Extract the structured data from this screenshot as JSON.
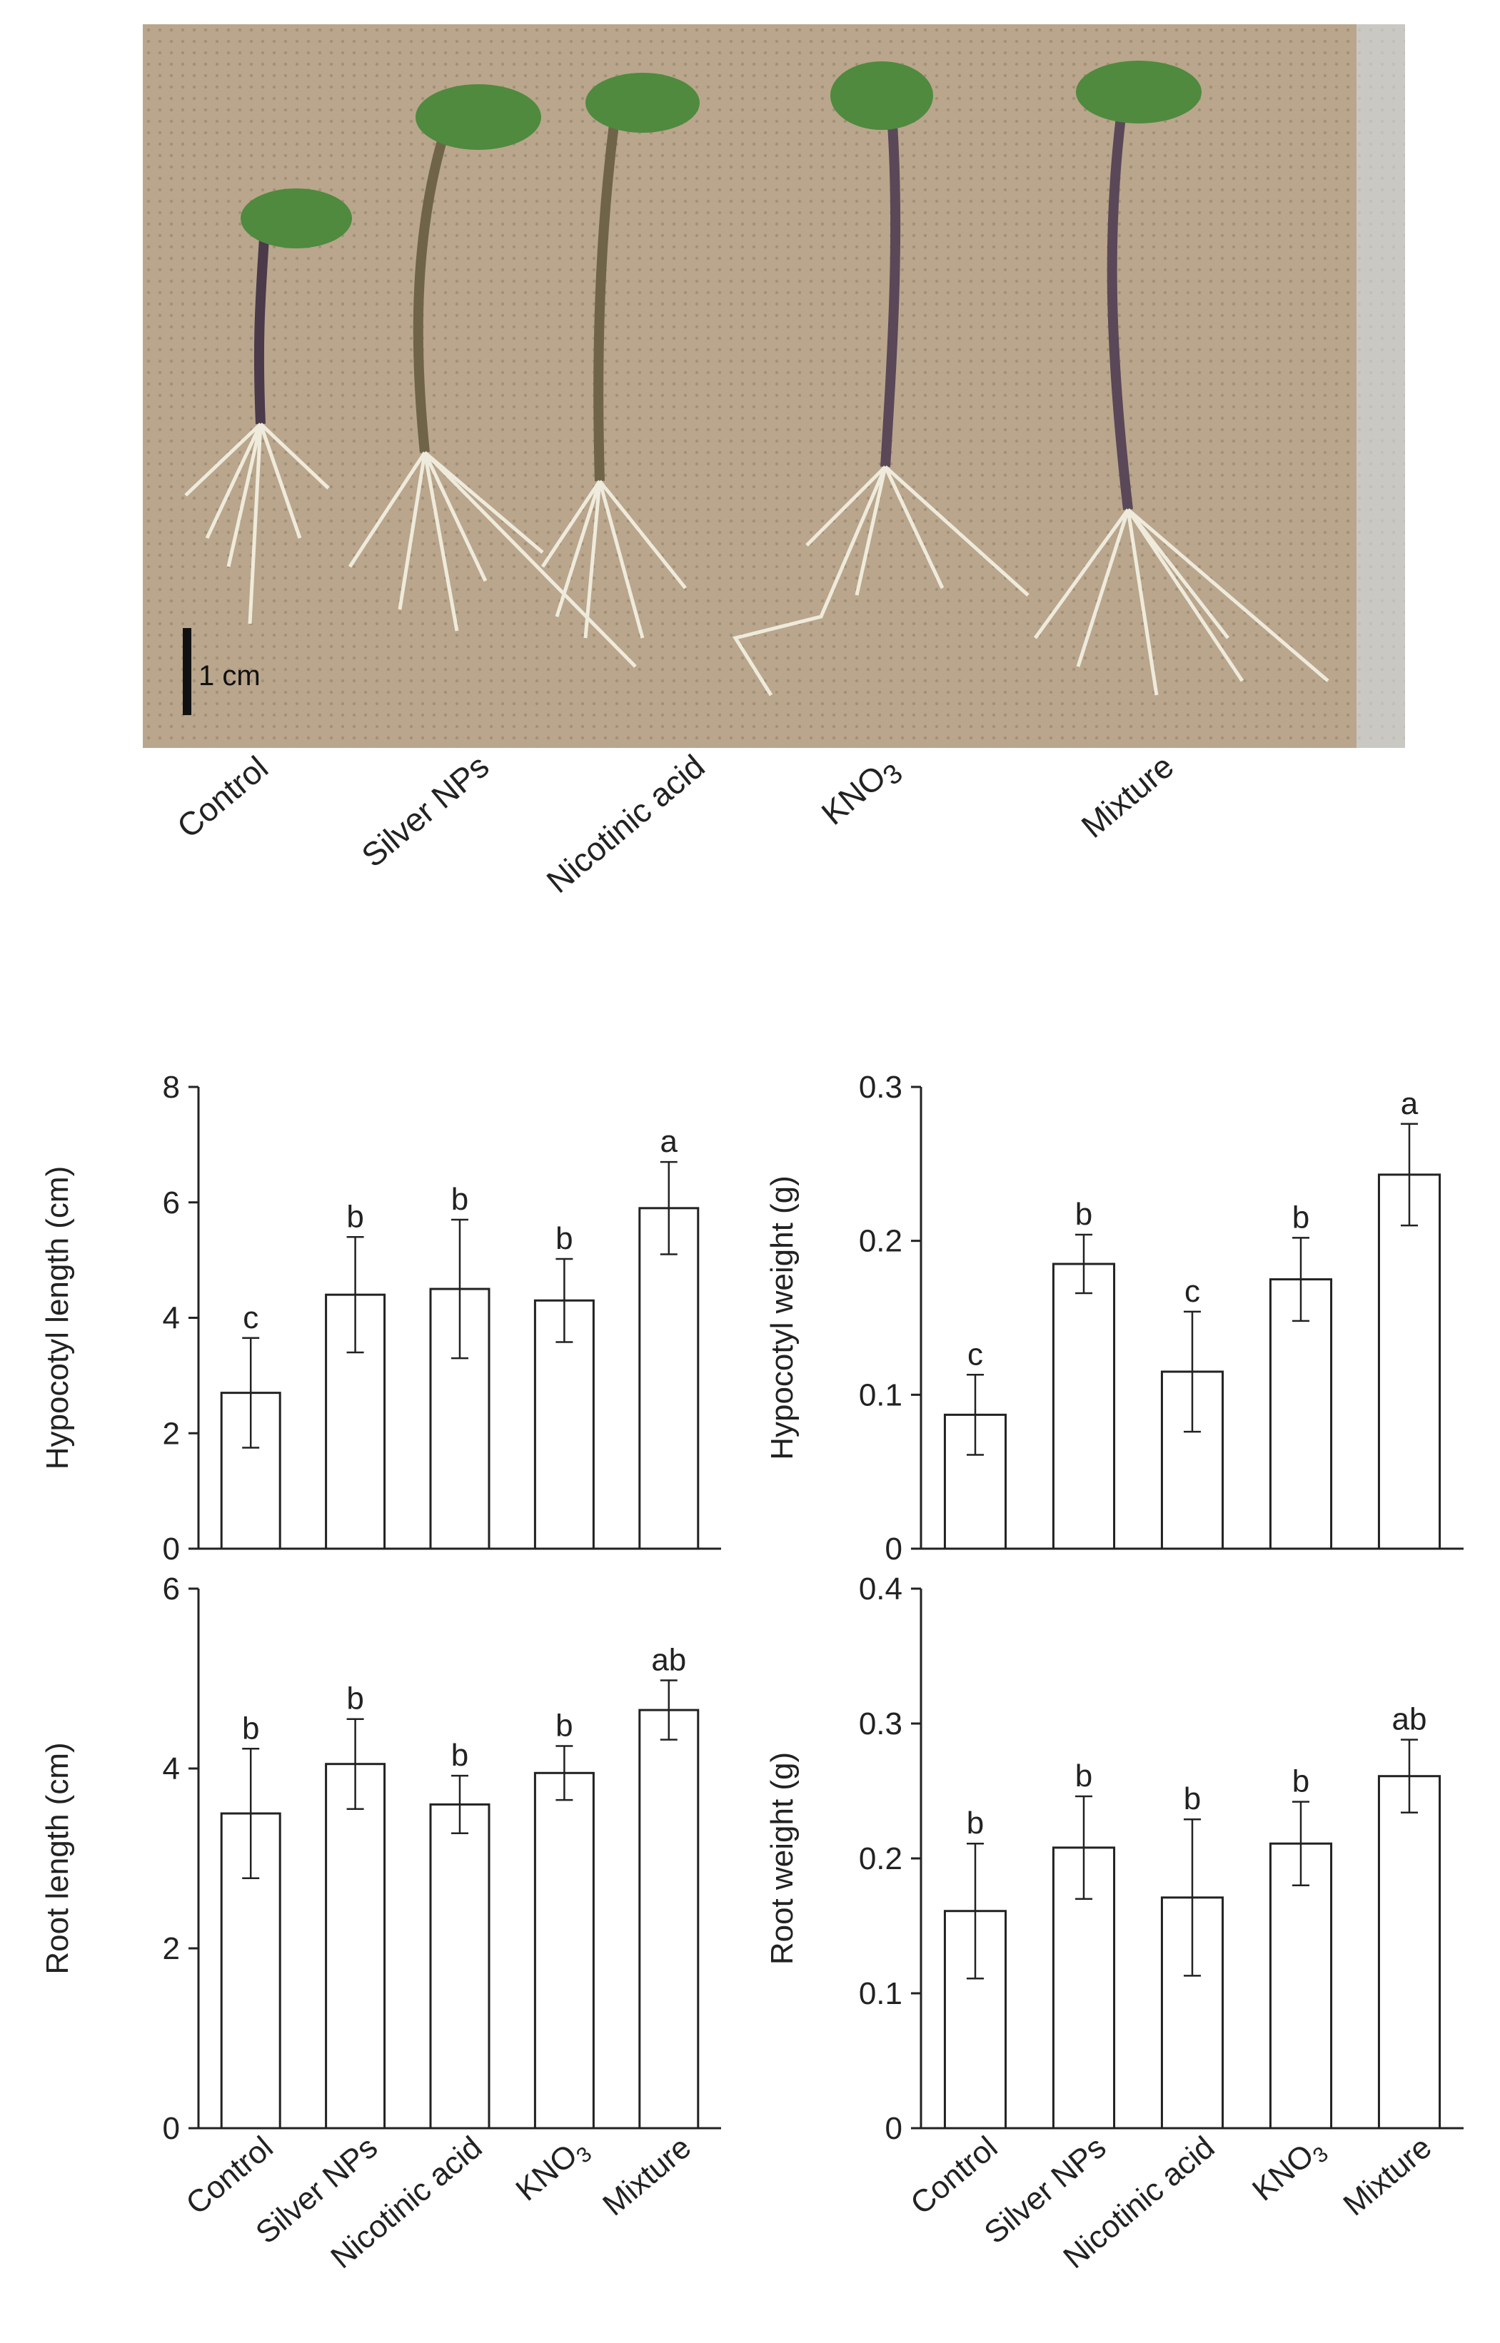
{
  "photo": {
    "scale_bar_label": "1 cm",
    "background_color": "#b8a58b",
    "leaf_color": "#4f8a3e",
    "stem_color": "#6f6448",
    "root_color": "#efebdc"
  },
  "categories_html": [
    "Control",
    "Silver NPs",
    "Nicotinic acid",
    "KNO<sub>3</sub>",
    "Mixture"
  ],
  "categories_text": [
    "Control",
    "Silver NPs",
    "Nicotinic acid",
    "KNO3",
    "Mixture"
  ],
  "chart_data": [
    {
      "type": "bar",
      "categories": [
        "Control",
        "Silver NPs",
        "Nicotinic acid",
        "KNO3",
        "Mixture"
      ],
      "values": [
        2.7,
        4.4,
        4.5,
        4.3,
        5.9
      ],
      "errors": [
        0.95,
        1.0,
        1.2,
        0.72,
        0.8
      ],
      "letters": [
        "c",
        "b",
        "b",
        "b",
        "a"
      ],
      "ylabel": "Hypocotyl length  (cm)",
      "ylim": [
        0,
        8
      ],
      "yticks": [
        0,
        2,
        4,
        6,
        8
      ],
      "tick_labels": [
        "0",
        "2",
        "4",
        "6",
        "8"
      ],
      "show_category_labels": false
    },
    {
      "type": "bar",
      "categories": [
        "Control",
        "Silver NPs",
        "Nicotinic acid",
        "KNO3",
        "Mixture"
      ],
      "values": [
        0.087,
        0.185,
        0.115,
        0.175,
        0.243
      ],
      "errors": [
        0.026,
        0.019,
        0.039,
        0.027,
        0.033
      ],
      "letters": [
        "c",
        "b",
        "c",
        "b",
        "a"
      ],
      "ylabel": "Hypocotyl weight  (g)",
      "ylim": [
        0,
        0.3
      ],
      "yticks": [
        0,
        0.1,
        0.2,
        0.3
      ],
      "tick_labels": [
        "0",
        "0.1",
        "0.2",
        "0.3"
      ],
      "show_category_labels": false
    },
    {
      "type": "bar",
      "categories": [
        "Control",
        "Silver NPs",
        "Nicotinic acid",
        "KNO3",
        "Mixture"
      ],
      "values": [
        3.5,
        4.05,
        3.6,
        3.95,
        4.65
      ],
      "errors": [
        0.72,
        0.5,
        0.32,
        0.3,
        0.33
      ],
      "letters": [
        "b",
        "b",
        "b",
        "b",
        "ab"
      ],
      "ylabel": "Root length (cm)",
      "ylim": [
        0,
        6
      ],
      "yticks": [
        0,
        2,
        4,
        6
      ],
      "tick_labels": [
        "0",
        "2",
        "4",
        "6"
      ],
      "show_category_labels": true
    },
    {
      "type": "bar",
      "categories": [
        "Control",
        "Silver NPs",
        "Nicotinic acid",
        "KNO3",
        "Mixture"
      ],
      "values": [
        0.161,
        0.208,
        0.171,
        0.211,
        0.261
      ],
      "errors": [
        0.05,
        0.038,
        0.058,
        0.031,
        0.027
      ],
      "letters": [
        "b",
        "b",
        "b",
        "b",
        "ab"
      ],
      "ylabel": "Root  weight  (g)",
      "ylim": [
        0,
        0.4
      ],
      "yticks": [
        0,
        0.1,
        0.2,
        0.3,
        0.4
      ],
      "tick_labels": [
        "0",
        "0.1",
        "0.2",
        "0.3",
        "0.4"
      ],
      "show_category_labels": true
    }
  ]
}
